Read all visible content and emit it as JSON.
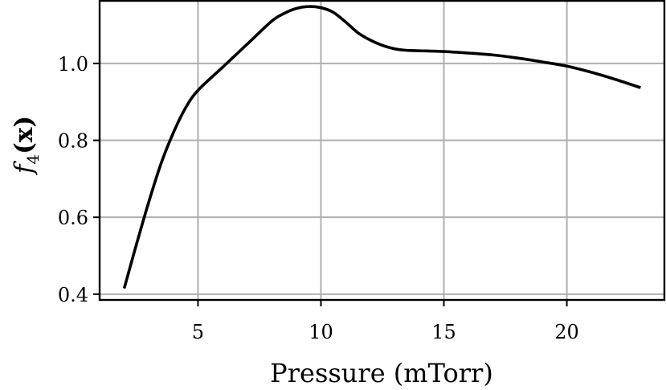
{
  "chart_data": {
    "type": "line",
    "xlabel": "Pressure (mTorr)",
    "ylabel": "f4(x)",
    "ylabel_parts": {
      "base": "f",
      "sub": "4",
      "arg": "(x)"
    },
    "xlim": [
      1.0,
      24.0
    ],
    "ylim": [
      0.385,
      1.165
    ],
    "xticks": [
      5,
      10,
      15,
      20
    ],
    "xtick_labels": [
      "5",
      "10",
      "15",
      "20"
    ],
    "yticks": [
      0.4,
      0.6,
      0.8,
      1.0
    ],
    "ytick_labels": [
      "0.4",
      "0.6",
      "0.8",
      "1.0"
    ],
    "grid": true,
    "series": [
      {
        "color": "#000000",
        "x": [
          2.0,
          2.5,
          3.0,
          3.5,
          4.0,
          4.5,
          5.0,
          6.0,
          7.0,
          8.0,
          8.5,
          9.0,
          9.5,
          10.0,
          10.5,
          11.0,
          11.5,
          12.0,
          12.5,
          13.0,
          13.5,
          14.0,
          15.0,
          16.0,
          17.0,
          18.0,
          19.0,
          20.0,
          21.0,
          22.0,
          23.0
        ],
        "y": [
          0.415,
          0.53,
          0.64,
          0.74,
          0.82,
          0.885,
          0.93,
          0.99,
          1.05,
          1.11,
          1.13,
          1.143,
          1.148,
          1.145,
          1.133,
          1.108,
          1.08,
          1.061,
          1.047,
          1.038,
          1.034,
          1.033,
          1.031,
          1.027,
          1.022,
          1.014,
          1.004,
          0.993,
          0.977,
          0.958,
          0.937
        ]
      }
    ]
  }
}
